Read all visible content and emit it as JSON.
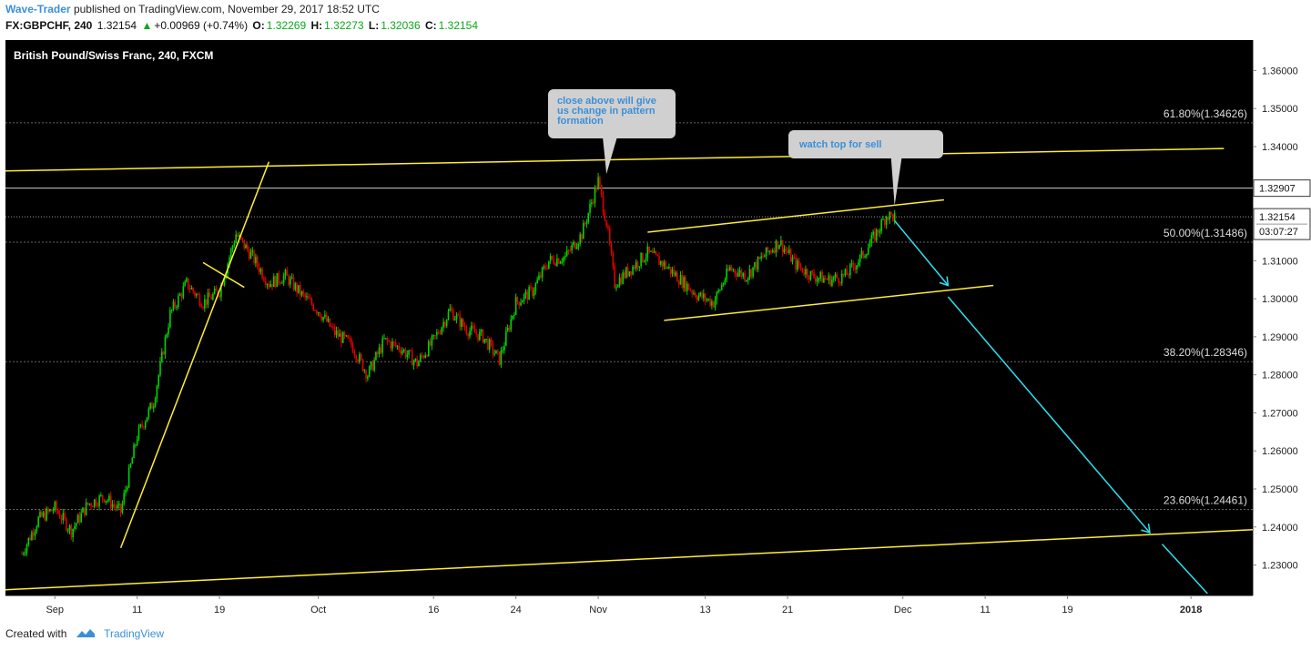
{
  "header": {
    "author": "Wave-Trader",
    "published": "published on TradingView.com, November 29, 2017 18:52 UTC",
    "symbol": "FX:GBPCHF, 240",
    "last": "1.32154",
    "change": "+0.00969 (+0.74%)",
    "o_label": "O:",
    "o_value": "1.32269",
    "h_label": "H:",
    "h_value": "1.32273",
    "l_label": "L:",
    "l_value": "1.32036",
    "c_label": "C:",
    "c_value": "1.32154"
  },
  "footer": {
    "created_with": "Created with",
    "brand": "TradingView"
  },
  "colors": {
    "background": "#000000",
    "up": "#00d400",
    "down": "#e00000",
    "trend": "#ffee33",
    "arrow": "#2fe0f0",
    "fib": "#666666",
    "note_text": "#3b8fd8"
  },
  "chart_data": {
    "type": "line",
    "title": "British Pound/Swiss Franc, 240, FXCM",
    "ylim": [
      1.222,
      1.368
    ],
    "y_ticks": [
      "1.36000",
      "1.35000",
      "1.34000",
      "1.33000",
      "1.32000",
      "1.31000",
      "1.30000",
      "1.29000",
      "1.28000",
      "1.27000",
      "1.26000",
      "1.25000",
      "1.24000",
      "1.23000"
    ],
    "y_tick_values": [
      1.36,
      1.35,
      1.34,
      1.33,
      1.32,
      1.31,
      1.3,
      1.29,
      1.28,
      1.27,
      1.26,
      1.25,
      1.24,
      1.23
    ],
    "x_ticks": [
      {
        "label": "Sep",
        "t": 4
      },
      {
        "label": "11",
        "t": 14
      },
      {
        "label": "19",
        "t": 24
      },
      {
        "label": "Oct",
        "t": 36
      },
      {
        "label": "16",
        "t": 50
      },
      {
        "label": "24",
        "t": 60
      },
      {
        "label": "Nov",
        "t": 70
      },
      {
        "label": "13",
        "t": 83
      },
      {
        "label": "21",
        "t": 93
      },
      {
        "label": "Dec",
        "t": 107
      },
      {
        "label": "11",
        "t": 117
      },
      {
        "label": "19",
        "t": 127
      },
      {
        "label": "2018",
        "t": 142
      }
    ],
    "x_range": [
      -2,
      149.5
    ],
    "price_markers": [
      {
        "label": "1.32907",
        "value": 1.32907
      },
      {
        "label": "1.32154",
        "value": 1.32154,
        "countdown": "03:07:27"
      }
    ],
    "fib_levels": [
      {
        "label": "61.80%(1.34626)",
        "value": 1.34626
      },
      {
        "label": "50.00%(1.31486)",
        "value": 1.31486
      },
      {
        "label": "38.20%(1.28346)",
        "value": 1.28346
      },
      {
        "label": "23.60%(1.24461)",
        "value": 1.24461
      }
    ],
    "close_series": {
      "t": [
        0,
        2,
        4,
        6,
        8,
        10,
        12,
        14,
        16,
        18,
        20,
        22,
        24,
        26,
        28,
        30,
        32,
        34,
        36,
        38,
        40,
        42,
        44,
        46,
        48,
        50,
        52,
        54,
        56,
        58,
        60,
        62,
        64,
        66,
        68,
        70,
        71,
        72,
        74,
        76,
        78,
        80,
        82,
        84,
        86,
        88,
        90,
        92,
        94,
        96,
        98,
        100,
        102,
        104,
        105,
        106
      ],
      "v": [
        1.233,
        1.242,
        1.245,
        1.239,
        1.246,
        1.248,
        1.244,
        1.264,
        1.273,
        1.296,
        1.304,
        1.299,
        1.302,
        1.317,
        1.311,
        1.304,
        1.306,
        1.301,
        1.297,
        1.291,
        1.288,
        1.28,
        1.289,
        1.287,
        1.283,
        1.289,
        1.297,
        1.292,
        1.29,
        1.284,
        1.299,
        1.302,
        1.31,
        1.311,
        1.317,
        1.331,
        1.32,
        1.304,
        1.308,
        1.312,
        1.309,
        1.305,
        1.301,
        1.299,
        1.308,
        1.306,
        1.311,
        1.315,
        1.309,
        1.306,
        1.305,
        1.306,
        1.311,
        1.318,
        1.322,
        1.32154
      ]
    },
    "trendlines": [
      {
        "name": "upper-channel",
        "from": [
          -2,
          1.3336
        ],
        "to": [
          146,
          1.3395
        ]
      },
      {
        "name": "lower-channel",
        "from": [
          -2,
          1.2235
        ],
        "to": [
          149.5,
          1.2393
        ]
      },
      {
        "name": "rally-line",
        "from": [
          12,
          1.2345
        ],
        "to": [
          30,
          1.336
        ]
      },
      {
        "name": "flag-line",
        "from": [
          22,
          1.3095
        ],
        "to": [
          27,
          1.303
        ]
      },
      {
        "name": "wedge-top",
        "from": [
          76,
          1.3175
        ],
        "to": [
          112,
          1.326
        ]
      },
      {
        "name": "wedge-bottom",
        "from": [
          78,
          1.2943
        ],
        "to": [
          118,
          1.3035
        ]
      }
    ],
    "projections": [
      {
        "from": [
          106,
          1.3205
        ],
        "to": [
          112.5,
          1.3035
        ]
      },
      {
        "from": [
          112.5,
          1.3005
        ],
        "to": [
          137,
          1.2385
        ]
      },
      {
        "from": [
          138.5,
          1.2355
        ],
        "to": [
          144,
          1.2225
        ]
      }
    ],
    "notes": [
      {
        "text": "close above will give us change in pattern formation",
        "anchor": [
          71,
          1.3328
        ]
      },
      {
        "text": "watch top for sell",
        "anchor": [
          106,
          1.3245
        ]
      }
    ]
  }
}
